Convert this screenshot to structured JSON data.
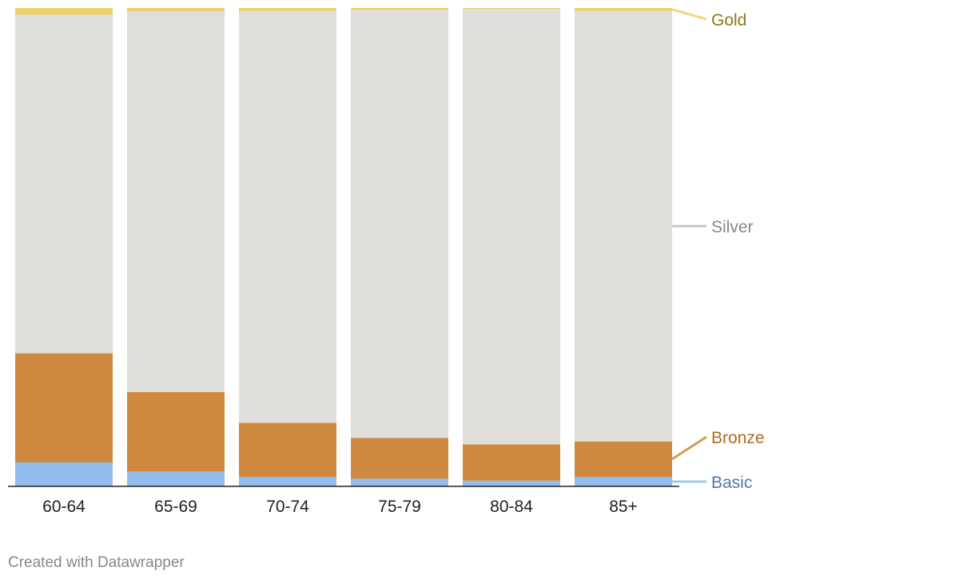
{
  "chart_data": {
    "type": "bar",
    "stacked": true,
    "normalized": true,
    "categories": [
      "60-64",
      "65-69",
      "70-74",
      "75-79",
      "80-84",
      "85+"
    ],
    "series": [
      {
        "name": "Basic",
        "color": "#93bdec",
        "label_color": "#4f7aa8",
        "values": [
          5.0,
          3.1,
          2.0,
          1.6,
          1.2,
          2.0
        ]
      },
      {
        "name": "Bronze",
        "color": "#d08a40",
        "label_color": "#b06a1e",
        "values": [
          22.8,
          16.6,
          11.3,
          8.5,
          7.6,
          7.4
        ]
      },
      {
        "name": "Silver",
        "color": "#dfdedb",
        "label_color": "#888888",
        "values": [
          70.8,
          79.6,
          86.1,
          89.5,
          91.0,
          90.0
        ]
      },
      {
        "name": "Gold",
        "color": "#ecd06a",
        "label_color": "#8a7a10",
        "values": [
          1.4,
          0.7,
          0.6,
          0.4,
          0.2,
          0.6
        ]
      }
    ],
    "ylim": [
      0,
      100
    ],
    "grid": false,
    "legend": "right, direct labels"
  },
  "footer": {
    "credit": "Created with Datawrapper"
  }
}
